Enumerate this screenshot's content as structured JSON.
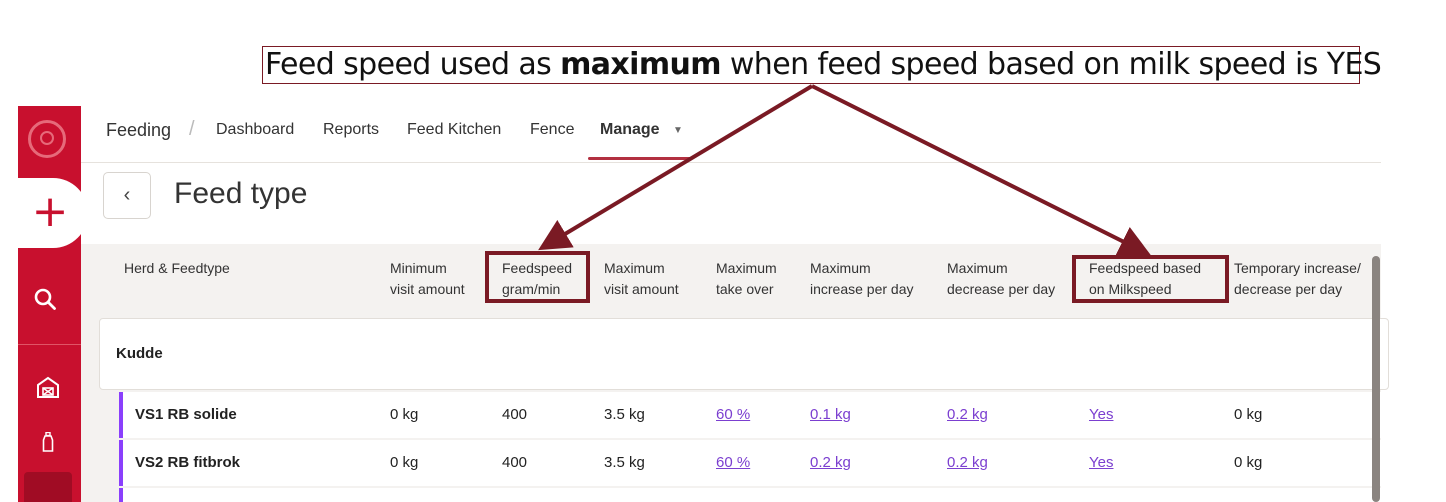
{
  "callout": {
    "prefix": "Feed speed used as ",
    "bold": "maximum",
    "suffix": " when feed speed based on milk speed is YES"
  },
  "nav": {
    "app": "Feeding",
    "separator": "/",
    "items": [
      "Dashboard",
      "Reports",
      "Feed Kitchen",
      "Fence",
      "Manage"
    ],
    "active": "Manage"
  },
  "page": {
    "title": "Feed type",
    "back_icon": "chevron-left-icon"
  },
  "table": {
    "headers": [
      [
        "Herd & Feedtype",
        ""
      ],
      [
        "Minimum",
        "visit amount"
      ],
      [
        "Feedspeed",
        "gram/min"
      ],
      [
        "Maximum",
        "visit amount"
      ],
      [
        "Maximum",
        "take over"
      ],
      [
        "Maximum",
        "increase per day"
      ],
      [
        "Maximum",
        "decrease per day"
      ],
      [
        "Feedspeed based",
        "on Milkspeed"
      ],
      [
        "Temporary increase/",
        "decrease per day"
      ]
    ],
    "group": "Kudde",
    "rows": [
      {
        "name": "VS1 RB solide",
        "min_visit": "0  kg",
        "feedspeed": "400",
        "max_visit": "3.5  kg",
        "take_over": "60 %",
        "increase": "0.1  kg",
        "decrease": "0.2  kg",
        "milkspeed": "Yes",
        "temporary": "0  kg"
      },
      {
        "name": "VS2 RB fitbrok",
        "min_visit": "0  kg",
        "feedspeed": "400",
        "max_visit": "3.5  kg",
        "take_over": "60 %",
        "increase": "0.2  kg",
        "decrease": "0.2  kg",
        "milkspeed": "Yes",
        "temporary": "0  kg"
      }
    ]
  },
  "colors": {
    "brand_red": "#c8102e",
    "annotation": "#7a1a24",
    "link": "#7b3fd0",
    "row_accent": "#8a3ffc"
  }
}
